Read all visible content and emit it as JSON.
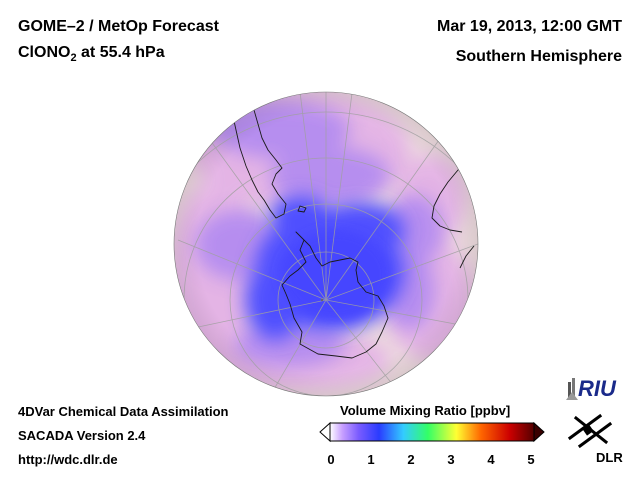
{
  "header": {
    "title_line1": "GOME–2 / MetOp Forecast",
    "species_prefix": "ClONO",
    "species_subscript": "2",
    "species_suffix": " at 55.4 hPa",
    "datetime": "Mar 19, 2013, 12:00 GMT",
    "region": "Southern Hemisphere"
  },
  "footer": {
    "line1": "4DVar Chemical Data Assimilation",
    "line2": "SACADA Version 2.4",
    "line3": "http://wdc.dlr.de"
  },
  "colorbar": {
    "title": "Volume Mixing Ratio [ppbv]",
    "ticks": [
      "0",
      "1",
      "2",
      "3",
      "4",
      "5"
    ],
    "range": [
      0,
      5
    ],
    "colors": [
      "#ffffff",
      "#b266ff",
      "#3333ff",
      "#33ccff",
      "#33ff66",
      "#ffff33",
      "#ff6600",
      "#cc0000",
      "#660000"
    ]
  },
  "logos": {
    "riu": "RIU",
    "dlr": "DLR"
  },
  "map": {
    "projection": "orthographic, south pole view",
    "colors": {
      "background": "#eddcde",
      "pink": "#e3b5e4",
      "violet": "#b48cf0",
      "blue": "#5050ff"
    }
  }
}
